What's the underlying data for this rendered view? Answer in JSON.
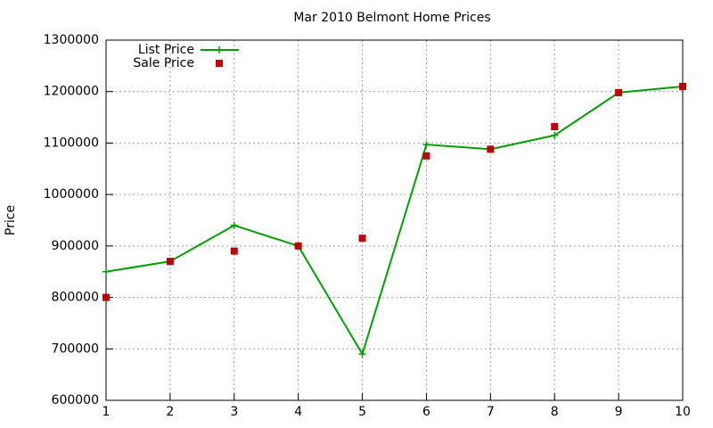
{
  "chart_data": {
    "type": "line",
    "title": "Mar 2010 Belmont Home Prices",
    "y_label": "Price",
    "x": [
      1,
      2,
      3,
      4,
      5,
      6,
      7,
      8,
      9,
      10
    ],
    "series": [
      {
        "name": "List Price",
        "color": "#00a000",
        "style": "linespoints",
        "values": [
          850000,
          870000,
          940000,
          900000,
          690000,
          1097000,
          1088000,
          1115000,
          1198000,
          1210000
        ]
      },
      {
        "name": "Sale Price",
        "color": "#c00000",
        "style": "points",
        "values": [
          800000,
          870000,
          890000,
          900000,
          915000,
          1075000,
          1088000,
          1132000,
          1198000,
          1210000
        ]
      }
    ],
    "xlim": [
      1,
      10
    ],
    "xticks": [
      1,
      2,
      3,
      4,
      5,
      6,
      7,
      8,
      9,
      10
    ],
    "ylim": [
      600000,
      1300000
    ],
    "yticks": [
      600000,
      700000,
      800000,
      900000,
      1000000,
      1100000,
      1200000,
      1300000
    ],
    "grid": true,
    "legend": "top-left"
  }
}
